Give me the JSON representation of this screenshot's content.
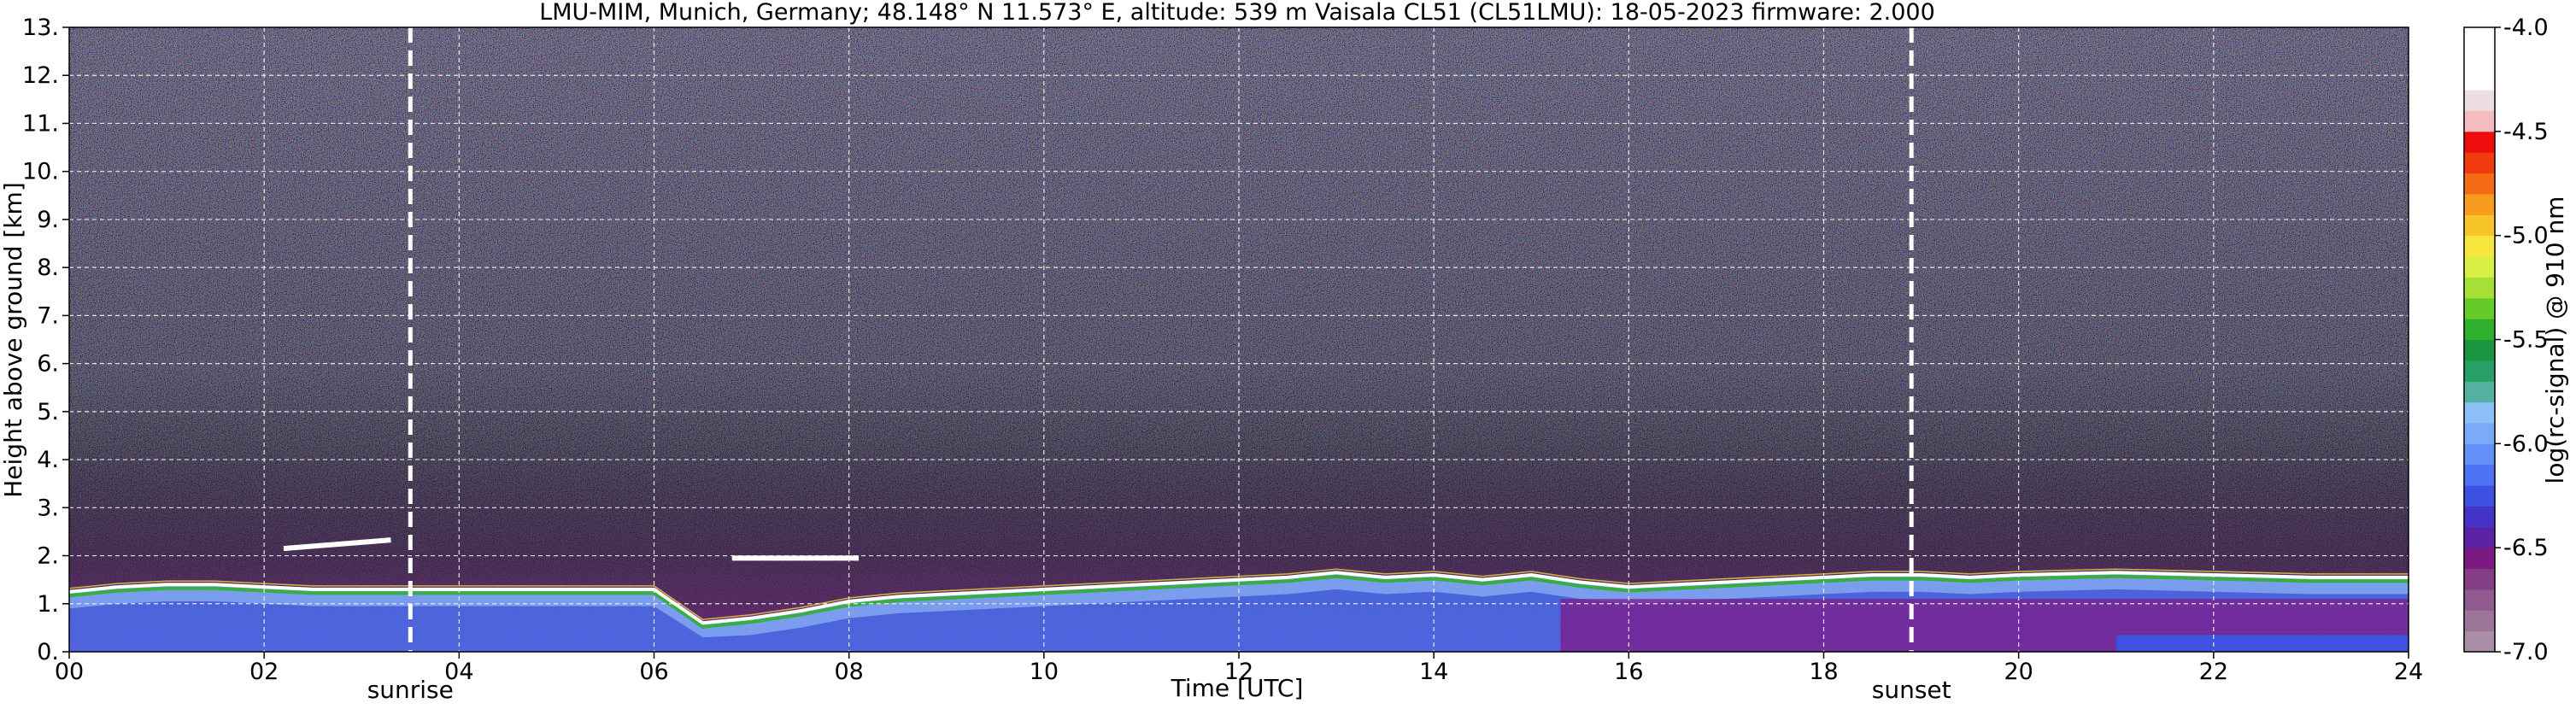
{
  "chart_data": {
    "type": "heatmap",
    "title": "LMU-MIM, Munich, Germany; 48.148° N 11.573° E, altitude: 539 m    Vaisala CL51 (CL51LMU): 18-05-2023    firmware: 2.000",
    "xlabel": "Time [UTC]",
    "ylabel": "Height above ground [km]",
    "xlim": [
      0,
      24
    ],
    "ylim": [
      0,
      13
    ],
    "x_ticks": [
      "00",
      "02",
      "04",
      "06",
      "08",
      "10",
      "12",
      "14",
      "16",
      "18",
      "20",
      "22",
      "24"
    ],
    "y_ticks": [
      "0.",
      "1.",
      "2.",
      "3.",
      "4.",
      "5.",
      "6.",
      "7.",
      "8.",
      "9.",
      "10.",
      "11.",
      "12.",
      "13."
    ],
    "grid": true,
    "colorbar": {
      "label": "log(rc-signal) @ 910 nm",
      "range": [
        -7.0,
        -4.0
      ],
      "ticks": [
        "-4.0",
        "-4.5",
        "-5.0",
        "-5.5",
        "-6.0",
        "-6.5",
        "-7.0"
      ],
      "colors": [
        "#a98ea8",
        "#9c7599",
        "#8f5b8e",
        "#843e86",
        "#7a1a80",
        "#5b23a3",
        "#4433c6",
        "#3d50e2",
        "#4d73f4",
        "#6390f8",
        "#7aaaf9",
        "#8cbff6",
        "#55b0a0",
        "#27a068",
        "#1b9440",
        "#2fb02c",
        "#64cb2b",
        "#a6e036",
        "#d8ef43",
        "#f6e63d",
        "#f7c52a",
        "#f79c1e",
        "#f46a15",
        "#f23c10",
        "#ee0c0c",
        "#f4bcbc",
        "#ebdde0",
        "#ffffff",
        "#ffffff",
        "#ffffff"
      ]
    },
    "events": [
      {
        "label": "sunrise",
        "time": 3.5
      },
      {
        "label": "sunset",
        "time": 18.9
      }
    ],
    "cloud_base_profile": {
      "time": [
        0,
        0.5,
        1.0,
        1.5,
        2.0,
        2.5,
        3.0,
        3.5,
        4.0,
        5.0,
        6.0,
        6.5,
        7.0,
        7.5,
        8.0,
        8.5,
        9.0,
        9.5,
        10.0,
        10.5,
        11.0,
        11.5,
        12.0,
        12.5,
        13.0,
        13.5,
        14.0,
        14.5,
        15.0,
        15.5,
        16.0,
        16.5,
        17.0,
        17.5,
        18.0,
        18.5,
        19.0,
        19.5,
        20.0,
        21.0,
        22.0,
        23.0,
        24.0
      ],
      "height_km": [
        1.25,
        1.35,
        1.4,
        1.4,
        1.35,
        1.3,
        1.3,
        1.3,
        1.3,
        1.3,
        1.3,
        0.6,
        0.7,
        0.85,
        1.05,
        1.15,
        1.2,
        1.25,
        1.3,
        1.35,
        1.4,
        1.45,
        1.5,
        1.55,
        1.65,
        1.55,
        1.6,
        1.5,
        1.6,
        1.45,
        1.35,
        1.4,
        1.45,
        1.5,
        1.55,
        1.6,
        1.6,
        1.55,
        1.6,
        1.65,
        1.6,
        1.55,
        1.55
      ]
    },
    "elevated_layers": [
      {
        "start": 2.2,
        "end": 3.3,
        "height_km": 2.15
      },
      {
        "start": 6.8,
        "end": 8.1,
        "height_km": 1.95
      }
    ]
  }
}
